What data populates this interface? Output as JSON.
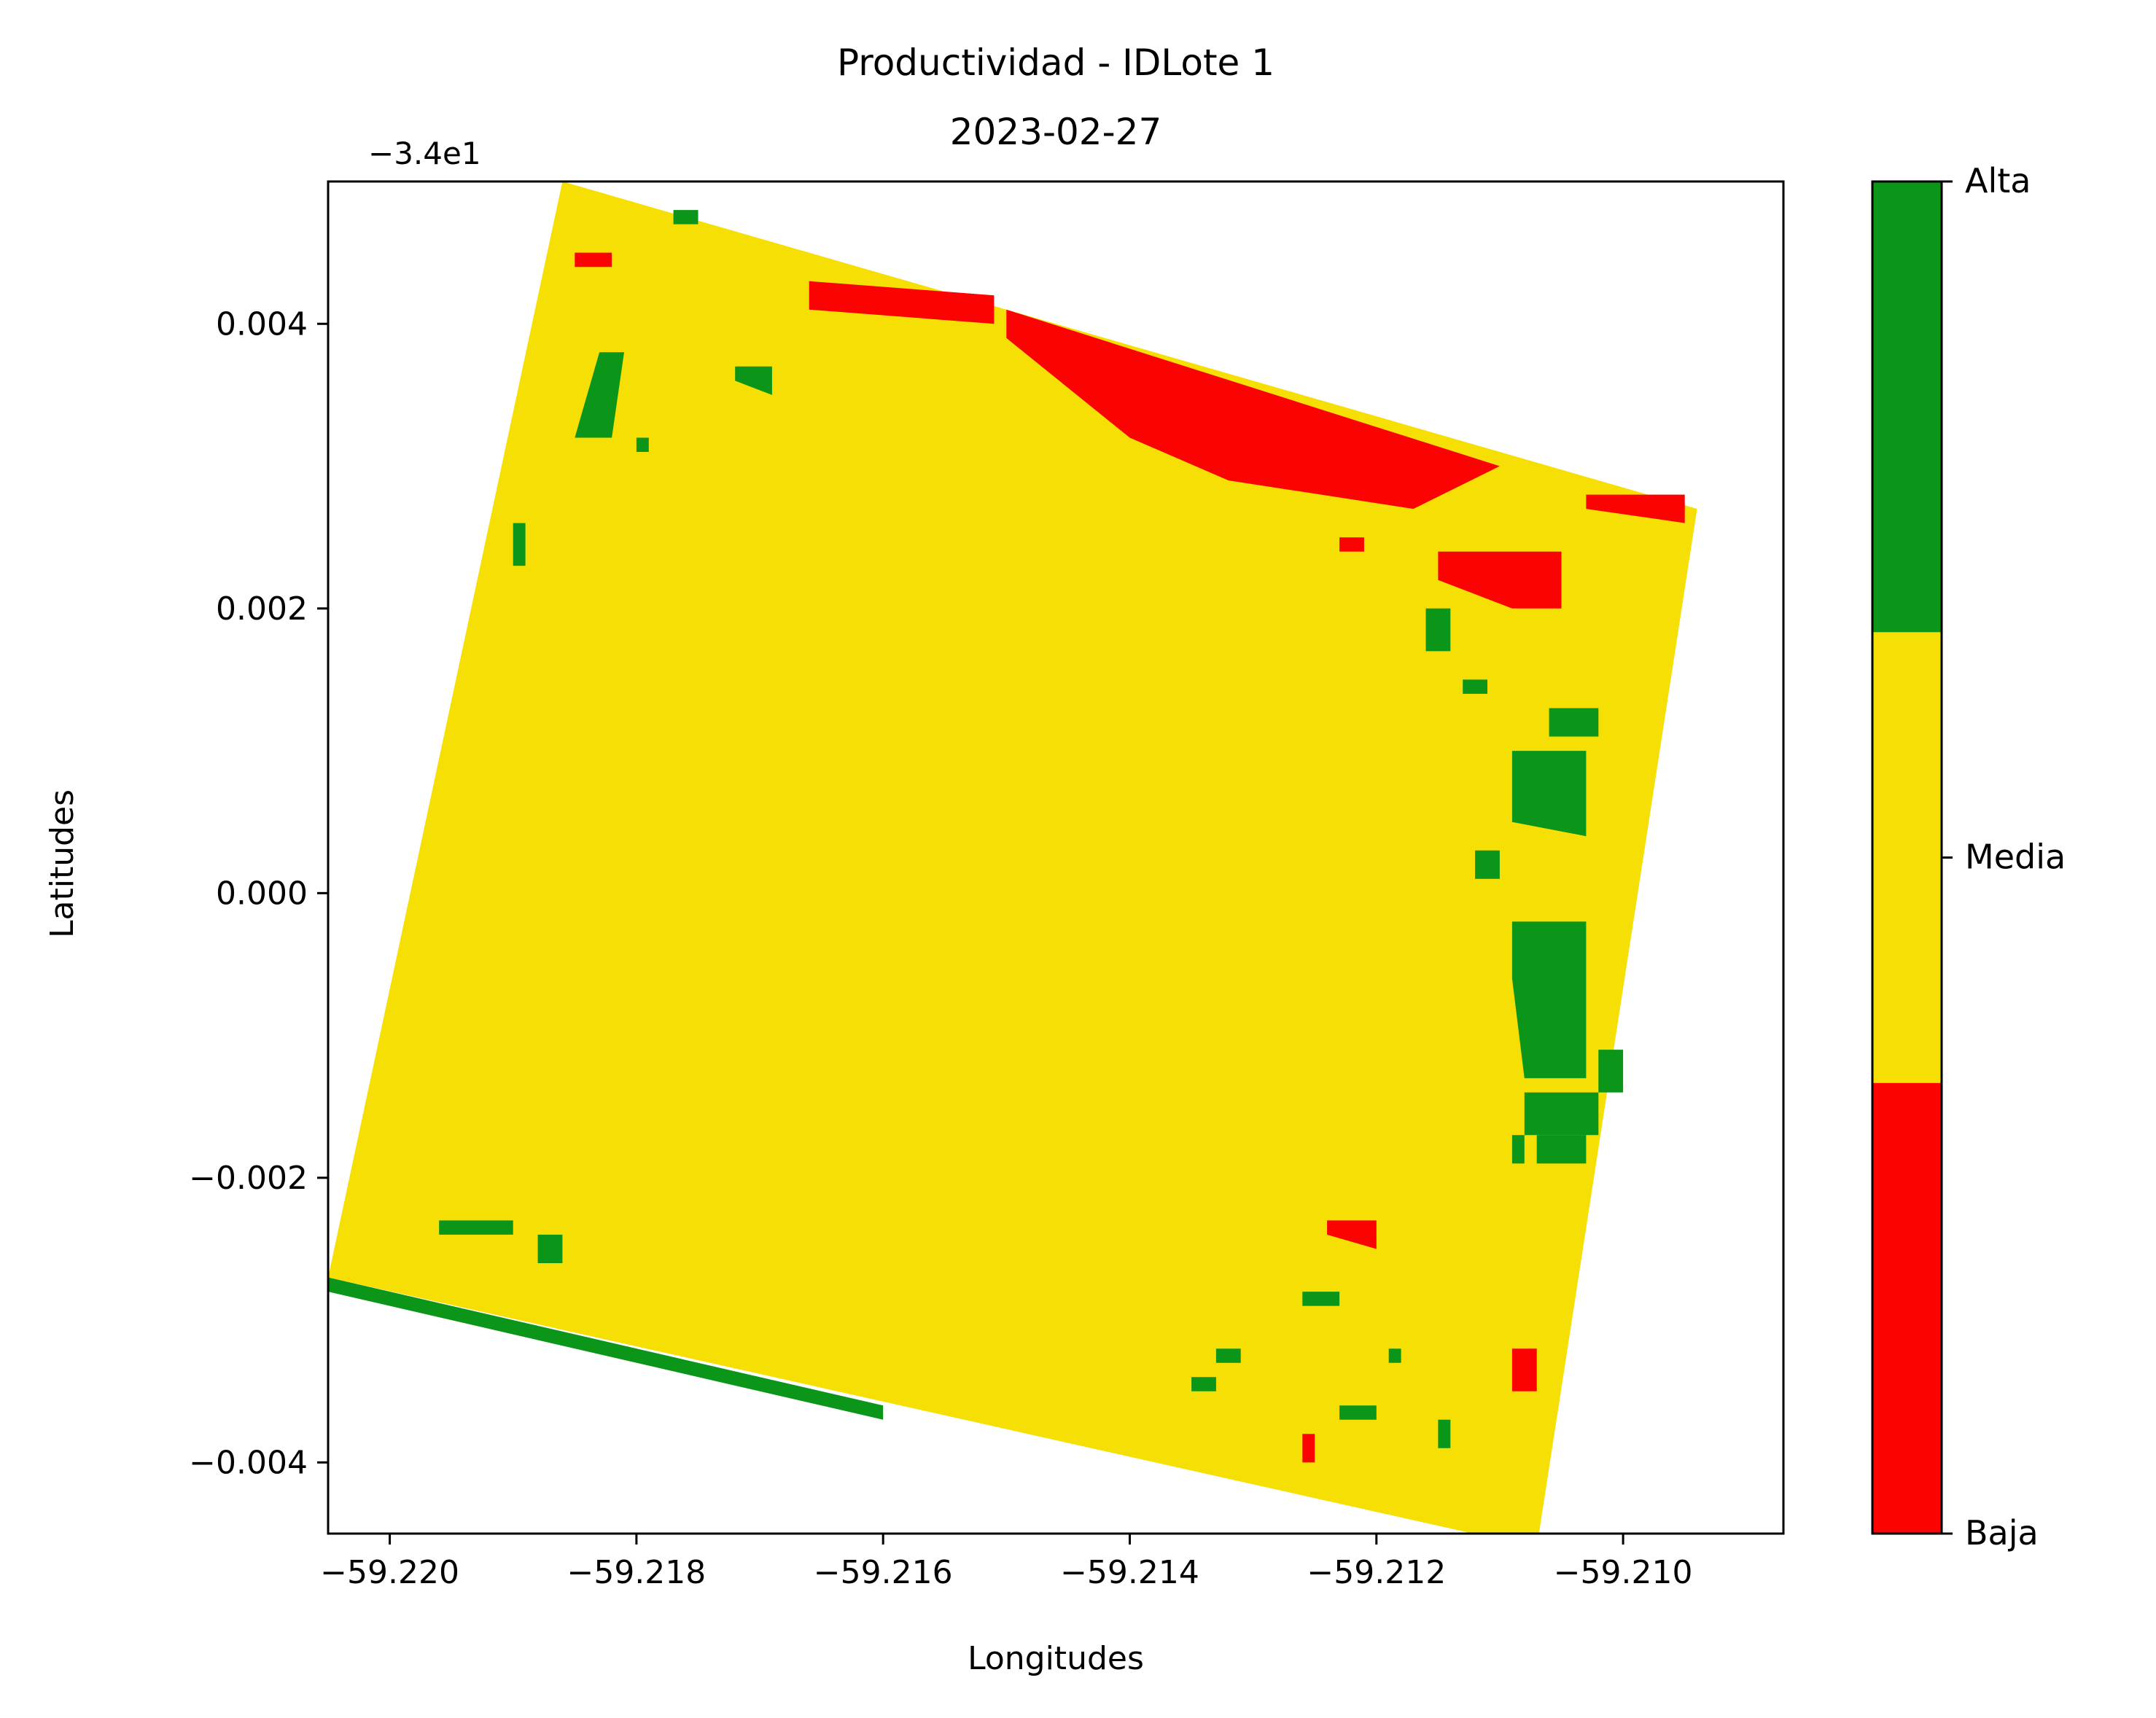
{
  "chart_data": {
    "type": "heatmap",
    "title": "Productividad - IDLote 1",
    "subtitle": "2023-02-27",
    "xlabel": "Longitudes",
    "ylabel": "Latitudes",
    "y_offset_label": "−3.4e1",
    "xlim": [
      -59.2205,
      -59.2087
    ],
    "ylim": [
      -0.0045,
      0.005
    ],
    "x_ticks": [
      -59.22,
      -59.218,
      -59.216,
      -59.214,
      -59.212,
      -59.21
    ],
    "x_tick_labels": [
      "−59.220",
      "−59.218",
      "−59.216",
      "−59.214",
      "−59.212",
      "−59.210"
    ],
    "y_ticks": [
      0.004,
      0.002,
      0.0,
      -0.002,
      -0.004
    ],
    "y_tick_labels": [
      "0.004",
      "0.002",
      "0.000",
      "−0.002",
      "−0.004"
    ],
    "colorbar": {
      "categories": [
        {
          "label": "Baja",
          "color": "#fb0203"
        },
        {
          "label": "Media",
          "color": "#f5df04"
        },
        {
          "label": "Alta",
          "color": "#0b9519"
        }
      ],
      "tick_labels": [
        "Alta",
        "Media",
        "Baja"
      ]
    },
    "field_polygon": [
      [
        -59.2186,
        0.005
      ],
      [
        -59.2094,
        0.0027
      ],
      [
        -59.2107,
        -0.0046
      ],
      [
        -59.2205,
        -0.0027
      ]
    ],
    "regions": [
      {
        "class": "Baja",
        "polygon": [
          [
            -59.2166,
            0.0043
          ],
          [
            -59.2151,
            0.0042
          ],
          [
            -59.2151,
            0.004
          ],
          [
            -59.2166,
            0.0041
          ]
        ]
      },
      {
        "class": "Baja",
        "polygon": [
          [
            -59.215,
            0.0041
          ],
          [
            -59.211,
            0.003
          ],
          [
            -59.2117,
            0.0027
          ],
          [
            -59.2132,
            0.0029
          ],
          [
            -59.214,
            0.0032
          ],
          [
            -59.215,
            0.0039
          ]
        ]
      },
      {
        "class": "Baja",
        "polygon": [
          [
            -59.2103,
            0.0028
          ],
          [
            -59.2095,
            0.0028
          ],
          [
            -59.2095,
            0.0026
          ],
          [
            -59.2103,
            0.0027
          ]
        ]
      },
      {
        "class": "Baja",
        "polygon": [
          [
            -59.2115,
            0.0024
          ],
          [
            -59.2105,
            0.0024
          ],
          [
            -59.2105,
            0.002
          ],
          [
            -59.2109,
            0.002
          ],
          [
            -59.2115,
            0.0022
          ]
        ]
      },
      {
        "class": "Baja",
        "polygon": [
          [
            -59.2185,
            0.0045
          ],
          [
            -59.2182,
            0.0045
          ],
          [
            -59.2182,
            0.0044
          ],
          [
            -59.2185,
            0.0044
          ]
        ]
      },
      {
        "class": "Baja",
        "polygon": [
          [
            -59.2123,
            0.0025
          ],
          [
            -59.2121,
            0.0025
          ],
          [
            -59.2121,
            0.0024
          ],
          [
            -59.2123,
            0.0024
          ]
        ]
      },
      {
        "class": "Baja",
        "polygon": [
          [
            -59.2124,
            -0.0023
          ],
          [
            -59.212,
            -0.0023
          ],
          [
            -59.212,
            -0.0025
          ],
          [
            -59.2124,
            -0.0024
          ]
        ]
      },
      {
        "class": "Baja",
        "polygon": [
          [
            -59.2109,
            -0.0032
          ],
          [
            -59.2107,
            -0.0032
          ],
          [
            -59.2107,
            -0.0035
          ],
          [
            -59.2109,
            -0.0035
          ]
        ]
      },
      {
        "class": "Baja",
        "polygon": [
          [
            -59.2126,
            -0.0038
          ],
          [
            -59.2125,
            -0.0038
          ],
          [
            -59.2125,
            -0.004
          ],
          [
            -59.2126,
            -0.004
          ]
        ]
      },
      {
        "class": "Alta",
        "polygon": [
          [
            -59.2109,
            -0.0002
          ],
          [
            -59.2103,
            -0.0002
          ],
          [
            -59.2103,
            -0.0013
          ],
          [
            -59.2108,
            -0.0013
          ],
          [
            -59.2109,
            -0.0006
          ]
        ]
      },
      {
        "class": "Alta",
        "polygon": [
          [
            -59.2109,
            0.001
          ],
          [
            -59.2103,
            0.001
          ],
          [
            -59.2103,
            0.0004
          ],
          [
            -59.2109,
            0.0005
          ]
        ]
      },
      {
        "class": "Alta",
        "polygon": [
          [
            -59.2106,
            0.0013
          ],
          [
            -59.2102,
            0.0013
          ],
          [
            -59.2102,
            0.0011
          ],
          [
            -59.2106,
            0.0011
          ]
        ]
      },
      {
        "class": "Alta",
        "polygon": [
          [
            -59.2108,
            -0.0014
          ],
          [
            -59.2102,
            -0.0014
          ],
          [
            -59.2102,
            -0.0017
          ],
          [
            -59.2108,
            -0.0017
          ]
        ]
      },
      {
        "class": "Alta",
        "polygon": [
          [
            -59.2183,
            0.0038
          ],
          [
            -59.2181,
            0.0038
          ],
          [
            -59.2182,
            0.0032
          ],
          [
            -59.2185,
            0.0032
          ]
        ]
      },
      {
        "class": "Alta",
        "polygon": [
          [
            -59.2172,
            0.0037
          ],
          [
            -59.2169,
            0.0037
          ],
          [
            -59.2169,
            0.0035
          ],
          [
            -59.2172,
            0.0036
          ]
        ]
      },
      {
        "class": "Alta",
        "polygon": [
          [
            -59.219,
            0.0026
          ],
          [
            -59.2189,
            0.0026
          ],
          [
            -59.2189,
            0.0023
          ],
          [
            -59.219,
            0.0023
          ]
        ]
      },
      {
        "class": "Alta",
        "polygon": [
          [
            -59.218,
            0.0032
          ],
          [
            -59.2179,
            0.0032
          ],
          [
            -59.2179,
            0.0031
          ],
          [
            -59.218,
            0.0031
          ]
        ]
      },
      {
        "class": "Alta",
        "polygon": [
          [
            -59.2177,
            0.0048
          ],
          [
            -59.2175,
            0.0048
          ],
          [
            -59.2175,
            0.0047
          ],
          [
            -59.2177,
            0.0047
          ]
        ]
      },
      {
        "class": "Alta",
        "polygon": [
          [
            -59.2116,
            0.002
          ],
          [
            -59.2114,
            0.002
          ],
          [
            -59.2114,
            0.0017
          ],
          [
            -59.2116,
            0.0017
          ]
        ]
      },
      {
        "class": "Alta",
        "polygon": [
          [
            -59.2113,
            0.0015
          ],
          [
            -59.2111,
            0.0015
          ],
          [
            -59.2111,
            0.0014
          ],
          [
            -59.2113,
            0.0014
          ]
        ]
      },
      {
        "class": "Alta",
        "polygon": [
          [
            -59.2112,
            0.0003
          ],
          [
            -59.211,
            0.0003
          ],
          [
            -59.211,
            0.0001
          ],
          [
            -59.2112,
            0.0001
          ]
        ]
      },
      {
        "class": "Alta",
        "polygon": [
          [
            -59.2107,
            -0.0017
          ],
          [
            -59.2103,
            -0.0017
          ],
          [
            -59.2103,
            -0.0019
          ],
          [
            -59.2107,
            -0.0019
          ]
        ]
      },
      {
        "class": "Alta",
        "polygon": [
          [
            -59.2102,
            -0.0011
          ],
          [
            -59.21,
            -0.0011
          ],
          [
            -59.21,
            -0.0014
          ],
          [
            -59.2102,
            -0.0014
          ]
        ]
      },
      {
        "class": "Alta",
        "polygon": [
          [
            -59.2109,
            -0.0017
          ],
          [
            -59.2108,
            -0.0017
          ],
          [
            -59.2108,
            -0.0019
          ],
          [
            -59.2109,
            -0.0019
          ]
        ]
      },
      {
        "class": "Alta",
        "polygon": [
          [
            -59.2126,
            -0.0028
          ],
          [
            -59.2123,
            -0.0028
          ],
          [
            -59.2123,
            -0.0029
          ],
          [
            -59.2126,
            -0.0029
          ]
        ]
      },
      {
        "class": "Alta",
        "polygon": [
          [
            -59.2123,
            -0.0036
          ],
          [
            -59.212,
            -0.0036
          ],
          [
            -59.212,
            -0.0037
          ],
          [
            -59.2123,
            -0.0037
          ]
        ]
      },
      {
        "class": "Alta",
        "polygon": [
          [
            -59.2133,
            -0.0032
          ],
          [
            -59.2131,
            -0.0032
          ],
          [
            -59.2131,
            -0.0033
          ],
          [
            -59.2133,
            -0.0033
          ]
        ]
      },
      {
        "class": "Alta",
        "polygon": [
          [
            -59.2135,
            -0.0034
          ],
          [
            -59.2133,
            -0.0034
          ],
          [
            -59.2133,
            -0.0035
          ],
          [
            -59.2135,
            -0.0035
          ]
        ]
      },
      {
        "class": "Alta",
        "polygon": [
          [
            -59.2115,
            -0.0037
          ],
          [
            -59.2114,
            -0.0037
          ],
          [
            -59.2114,
            -0.0039
          ],
          [
            -59.2115,
            -0.0039
          ]
        ]
      },
      {
        "class": "Alta",
        "polygon": [
          [
            -59.2119,
            -0.0032
          ],
          [
            -59.2118,
            -0.0032
          ],
          [
            -59.2118,
            -0.0033
          ],
          [
            -59.2119,
            -0.0033
          ]
        ]
      },
      {
        "class": "Alta",
        "polygon": [
          [
            -59.2196,
            -0.0023
          ],
          [
            -59.219,
            -0.0023
          ],
          [
            -59.219,
            -0.0024
          ],
          [
            -59.2196,
            -0.0024
          ]
        ]
      },
      {
        "class": "Alta",
        "polygon": [
          [
            -59.2188,
            -0.0024
          ],
          [
            -59.2186,
            -0.0024
          ],
          [
            -59.2186,
            -0.0026
          ],
          [
            -59.2188,
            -0.0026
          ]
        ]
      },
      {
        "class": "Alta",
        "polygon": [
          [
            -59.2205,
            -0.0027
          ],
          [
            -59.216,
            -0.0036
          ],
          [
            -59.216,
            -0.0037
          ],
          [
            -59.2205,
            -0.0028
          ]
        ]
      }
    ]
  }
}
